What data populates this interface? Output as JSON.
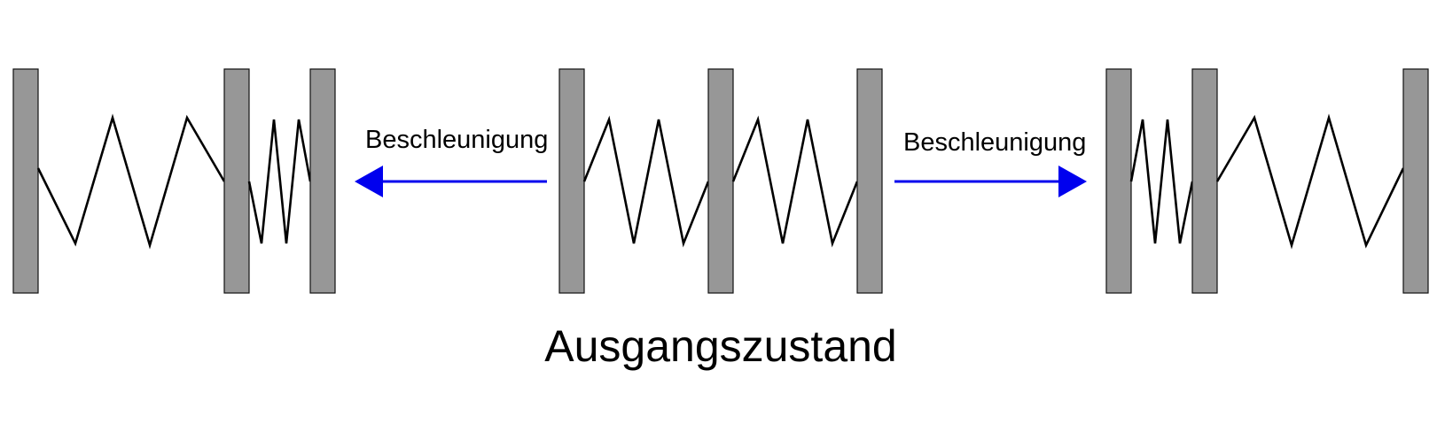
{
  "diagram": {
    "left_arrow_label": "Beschleunigung",
    "right_arrow_label": "Beschleunigung",
    "caption": "Ausgangszustand",
    "colors": {
      "plate": "#979797",
      "spring": "#000000",
      "arrow": "#0000ee",
      "background": "#ffffff"
    }
  }
}
